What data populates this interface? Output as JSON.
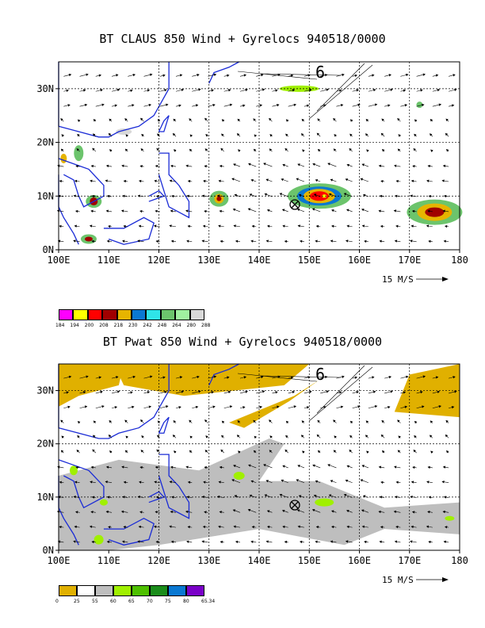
{
  "panels": [
    {
      "title": "BT CLAUS 850 Wind + Gyrelocs 940518/0000",
      "x_ticks": [
        "100E",
        "110E",
        "120E",
        "130E",
        "140E",
        "150E",
        "160E",
        "170E",
        "180"
      ],
      "y_ticks": [
        "30N",
        "20N",
        "10N",
        "0N"
      ],
      "scale_label": "15 M/S",
      "storm_symbol": "6",
      "legend": {
        "colors": [
          "#ff00ff",
          "#ffff00",
          "#ff0000",
          "#a00000",
          "#e6b400",
          "#0a78d2",
          "#2fe4e8",
          "#6cc46c",
          "#a0f0a0",
          "#d8d8d8"
        ],
        "labels": [
          "184",
          "194",
          "200",
          "208",
          "218",
          "230",
          "242",
          "248",
          "264",
          "280",
          "288"
        ]
      }
    },
    {
      "title": "BT Pwat 850 Wind + Gyrelocs 940518/0000",
      "x_ticks": [
        "100E",
        "110E",
        "120E",
        "130E",
        "140E",
        "150E",
        "160E",
        "170E",
        "180"
      ],
      "y_ticks": [
        "30N",
        "20N",
        "10N",
        "0N"
      ],
      "scale_label": "15 M/S",
      "storm_symbol": "6",
      "legend": {
        "colors": [
          "#e0b000",
          "#ffffff",
          "#bebebe",
          "#a0f000",
          "#4ec000",
          "#1a8c1a",
          "#0a78d2",
          "#7a00c8"
        ],
        "labels": [
          "0",
          "25",
          "55",
          "60",
          "65",
          "70",
          "75",
          "80",
          "65.34"
        ]
      }
    }
  ]
}
